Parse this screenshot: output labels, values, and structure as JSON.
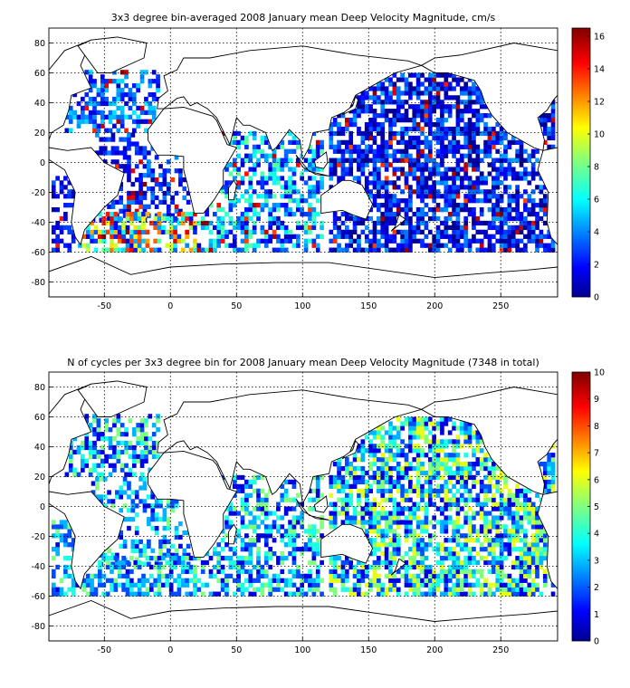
{
  "chart_data": [
    {
      "type": "heatmap",
      "title": "3x3 degree bin-averaged 2008 January mean Deep Velocity Magnitude, cm/s",
      "x_ticks": [
        -50,
        0,
        50,
        100,
        150,
        200,
        250
      ],
      "y_ticks": [
        -80,
        -60,
        -40,
        -20,
        0,
        20,
        40,
        60,
        80
      ],
      "xlim": [
        -92,
        293
      ],
      "ylim": [
        -90,
        90
      ],
      "grid": true,
      "colorbar": {
        "min": 0,
        "max": 16.5,
        "ticks": [
          0,
          2,
          4,
          6,
          8,
          10,
          12,
          14,
          16
        ],
        "colormap": "jet"
      },
      "bin_size_deg": 3,
      "regions": [
        {
          "lon": [
            -80,
            -10
          ],
          "lat": [
            20,
            60
          ],
          "mean": 3.5,
          "spread": 2.5,
          "fill": 0.55
        },
        {
          "lon": [
            -60,
            15
          ],
          "lat": [
            -40,
            20
          ],
          "mean": 2.5,
          "spread": 2,
          "fill": 0.45
        },
        {
          "lon": [
            -70,
            20
          ],
          "lat": [
            -60,
            -35
          ],
          "mean": 8,
          "spread": 7,
          "fill": 0.6
        },
        {
          "lon": [
            20,
            115
          ],
          "lat": [
            -60,
            20
          ],
          "mean": 4.5,
          "spread": 3.5,
          "fill": 0.55
        },
        {
          "lon": [
            120,
            290
          ],
          "lat": [
            -60,
            60
          ],
          "mean": 2.2,
          "spread": 2.5,
          "fill": 0.7
        },
        {
          "lon": [
            -90,
            -70
          ],
          "lat": [
            -60,
            -10
          ],
          "mean": 2,
          "spread": 1.5,
          "fill": 0.5
        }
      ]
    },
    {
      "type": "heatmap",
      "title": "N of cycles per 3x3 degree bin for 2008 January mean Deep Velocity Magnitude (7348 in total)",
      "x_ticks": [
        -50,
        0,
        50,
        100,
        150,
        200,
        250
      ],
      "y_ticks": [
        -80,
        -60,
        -40,
        -20,
        0,
        20,
        40,
        60,
        80
      ],
      "xlim": [
        -92,
        293
      ],
      "ylim": [
        -90,
        90
      ],
      "grid": true,
      "total_cycles": 7348,
      "colorbar": {
        "min": 0,
        "max": 10,
        "ticks": [
          0,
          1,
          2,
          3,
          4,
          5,
          6,
          7,
          8,
          9,
          10
        ],
        "colormap": "jet"
      },
      "bin_size_deg": 3,
      "regions": [
        {
          "lon": [
            -80,
            -10
          ],
          "lat": [
            20,
            60
          ],
          "mean": 3,
          "spread": 2.5,
          "fill": 0.55
        },
        {
          "lon": [
            -60,
            15
          ],
          "lat": [
            -40,
            20
          ],
          "mean": 3,
          "spread": 2,
          "fill": 0.45
        },
        {
          "lon": [
            -70,
            20
          ],
          "lat": [
            -60,
            -35
          ],
          "mean": 3,
          "spread": 2,
          "fill": 0.6
        },
        {
          "lon": [
            20,
            115
          ],
          "lat": [
            -60,
            20
          ],
          "mean": 3,
          "spread": 2.5,
          "fill": 0.55
        },
        {
          "lon": [
            120,
            290
          ],
          "lat": [
            -60,
            60
          ],
          "mean": 3.5,
          "spread": 3,
          "fill": 0.7
        },
        {
          "lon": [
            -90,
            -70
          ],
          "lat": [
            -60,
            -10
          ],
          "mean": 3,
          "spread": 2,
          "fill": 0.5
        }
      ]
    }
  ],
  "land_polygons": [
    {
      "name": "north-america",
      "pts": [
        [
          -92,
          62
        ],
        [
          -80,
          75
        ],
        [
          -60,
          82
        ],
        [
          -68,
          65
        ],
        [
          -60,
          50
        ],
        [
          -75,
          45
        ],
        [
          -77,
          35
        ],
        [
          -81,
          25
        ],
        [
          -90,
          20
        ],
        [
          -92,
          15
        ]
      ]
    },
    {
      "name": "south-america",
      "pts": [
        [
          -92,
          10
        ],
        [
          -78,
          8
        ],
        [
          -60,
          10
        ],
        [
          -50,
          0
        ],
        [
          -35,
          -7
        ],
        [
          -40,
          -22
        ],
        [
          -50,
          -30
        ],
        [
          -58,
          -38
        ],
        [
          -65,
          -45
        ],
        [
          -68,
          -55
        ],
        [
          -72,
          -50
        ],
        [
          -75,
          -40
        ],
        [
          -72,
          -20
        ],
        [
          -80,
          -5
        ],
        [
          -92,
          2
        ]
      ]
    },
    {
      "name": "greenland",
      "pts": [
        [
          -55,
          60
        ],
        [
          -45,
          60
        ],
        [
          -20,
          70
        ],
        [
          -18,
          80
        ],
        [
          -40,
          84
        ],
        [
          -60,
          82
        ],
        [
          -70,
          78
        ]
      ]
    },
    {
      "name": "africa",
      "pts": [
        [
          -17,
          15
        ],
        [
          -10,
          5
        ],
        [
          0,
          5
        ],
        [
          10,
          4
        ],
        [
          10,
          -5
        ],
        [
          13,
          -15
        ],
        [
          18,
          -34
        ],
        [
          25,
          -34
        ],
        [
          33,
          -25
        ],
        [
          40,
          -15
        ],
        [
          40,
          -5
        ],
        [
          50,
          10
        ],
        [
          43,
          12
        ],
        [
          35,
          28
        ],
        [
          32,
          31
        ],
        [
          10,
          37
        ],
        [
          -5,
          36
        ],
        [
          -17,
          22
        ]
      ]
    },
    {
      "name": "eurasia",
      "pts": [
        [
          -10,
          36
        ],
        [
          -9,
          43
        ],
        [
          -2,
          48
        ],
        [
          -5,
          58
        ],
        [
          5,
          62
        ],
        [
          10,
          70
        ],
        [
          30,
          70
        ],
        [
          60,
          75
        ],
        [
          100,
          78
        ],
        [
          140,
          72
        ],
        [
          180,
          68
        ],
        [
          190,
          65
        ],
        [
          170,
          60
        ],
        [
          160,
          55
        ],
        [
          140,
          45
        ],
        [
          135,
          35
        ],
        [
          122,
          30
        ],
        [
          120,
          22
        ],
        [
          108,
          20
        ],
        [
          105,
          10
        ],
        [
          100,
          2
        ],
        [
          98,
          15
        ],
        [
          90,
          22
        ],
        [
          80,
          10
        ],
        [
          77,
          8
        ],
        [
          72,
          20
        ],
        [
          60,
          25
        ],
        [
          55,
          25
        ],
        [
          50,
          30
        ],
        [
          45,
          12
        ],
        [
          35,
          30
        ],
        [
          28,
          36
        ],
        [
          20,
          40
        ],
        [
          15,
          38
        ],
        [
          10,
          44
        ],
        [
          5,
          43
        ],
        [
          -5,
          36
        ]
      ]
    },
    {
      "name": "australia",
      "pts": [
        [
          114,
          -22
        ],
        [
          114,
          -34
        ],
        [
          130,
          -32
        ],
        [
          138,
          -35
        ],
        [
          148,
          -38
        ],
        [
          153,
          -28
        ],
        [
          145,
          -15
        ],
        [
          136,
          -12
        ],
        [
          130,
          -12
        ],
        [
          122,
          -17
        ]
      ]
    },
    {
      "name": "antarctica",
      "pts": [
        [
          -92,
          -73
        ],
        [
          -60,
          -63
        ],
        [
          -30,
          -75
        ],
        [
          0,
          -70
        ],
        [
          40,
          -68
        ],
        [
          80,
          -67
        ],
        [
          120,
          -67
        ],
        [
          160,
          -72
        ],
        [
          200,
          -77
        ],
        [
          240,
          -74
        ],
        [
          270,
          -72
        ],
        [
          293,
          -70
        ],
        [
          293,
          -90
        ],
        [
          -92,
          -90
        ]
      ]
    },
    {
      "name": "north-america-east",
      "pts": [
        [
          190,
          65
        ],
        [
          200,
          60
        ],
        [
          210,
          60
        ],
        [
          230,
          55
        ],
        [
          235,
          48
        ],
        [
          238,
          40
        ],
        [
          243,
          32
        ],
        [
          250,
          25
        ],
        [
          255,
          20
        ],
        [
          265,
          15
        ],
        [
          275,
          10
        ],
        [
          282,
          8
        ],
        [
          283,
          15
        ],
        [
          280,
          25
        ],
        [
          278,
          30
        ],
        [
          285,
          35
        ],
        [
          290,
          42
        ],
        [
          293,
          45
        ],
        [
          293,
          75
        ],
        [
          260,
          80
        ],
        [
          220,
          72
        ],
        [
          200,
          70
        ]
      ]
    },
    {
      "name": "south-america-east",
      "pts": [
        [
          282,
          8
        ],
        [
          293,
          10
        ],
        [
          293,
          -55
        ],
        [
          288,
          -50
        ],
        [
          285,
          -40
        ],
        [
          286,
          -20
        ],
        [
          278,
          -5
        ]
      ]
    },
    {
      "name": "madagascar",
      "pts": [
        [
          44,
          -25
        ],
        [
          48,
          -25
        ],
        [
          50,
          -15
        ],
        [
          48,
          -12
        ],
        [
          44,
          -17
        ]
      ]
    },
    {
      "name": "borneo",
      "pts": [
        [
          109,
          1
        ],
        [
          118,
          7
        ],
        [
          119,
          0
        ],
        [
          116,
          -4
        ],
        [
          110,
          -3
        ]
      ]
    },
    {
      "name": "new-zealand",
      "pts": [
        [
          167,
          -46
        ],
        [
          174,
          -41
        ],
        [
          178,
          -38
        ],
        [
          173,
          -35
        ],
        [
          170,
          -43
        ]
      ]
    },
    {
      "name": "japan",
      "pts": [
        [
          130,
          32
        ],
        [
          135,
          34
        ],
        [
          140,
          36
        ],
        [
          142,
          42
        ],
        [
          140,
          44
        ],
        [
          138,
          38
        ],
        [
          132,
          34
        ]
      ]
    },
    {
      "name": "indonesia",
      "pts": [
        [
          95,
          5
        ],
        [
          105,
          -6
        ],
        [
          115,
          -8
        ],
        [
          120,
          -9
        ],
        [
          110,
          -8
        ],
        [
          100,
          -3
        ]
      ]
    }
  ],
  "colors": {
    "background": "#ffffff",
    "land_fill": "#ffffff",
    "coastline": "#000000"
  }
}
